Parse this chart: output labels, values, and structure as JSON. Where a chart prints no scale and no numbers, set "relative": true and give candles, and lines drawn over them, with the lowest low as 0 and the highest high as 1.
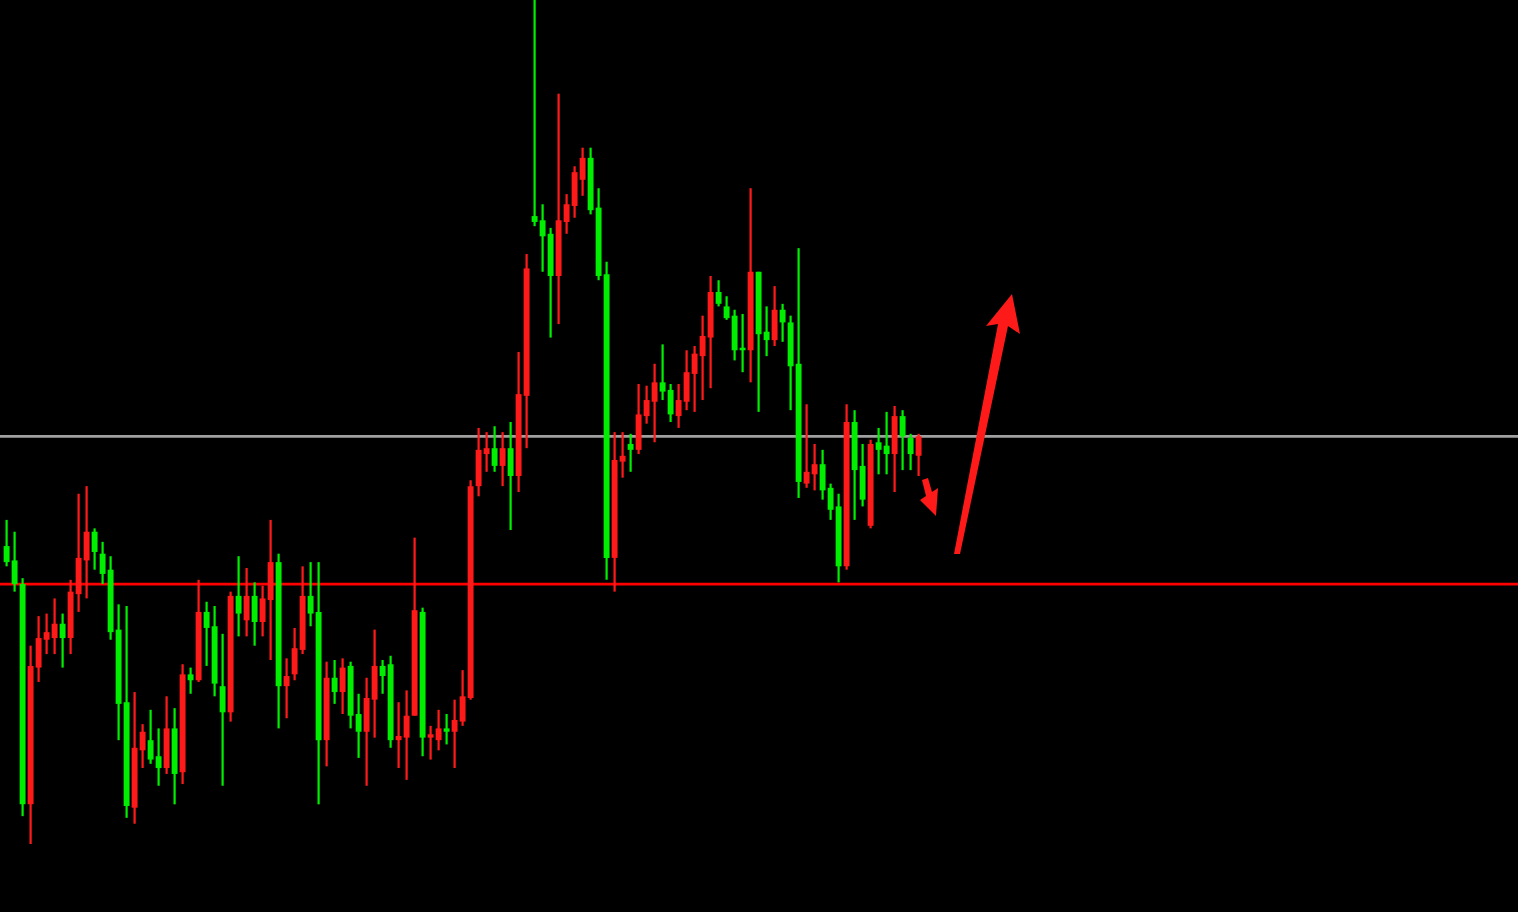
{
  "chart_data": {
    "type": "candlestick",
    "relative": true,
    "categories": [
      null,
      null,
      null,
      null,
      null,
      null,
      null,
      null,
      null,
      null,
      null,
      null,
      null,
      null,
      null,
      null,
      null,
      null,
      null,
      null,
      null,
      null,
      null,
      null,
      null,
      null,
      null,
      null,
      null,
      null,
      null,
      null,
      null,
      null,
      null,
      null,
      null,
      null,
      null,
      null,
      null,
      null,
      null,
      null,
      null,
      null,
      null,
      null,
      null,
      null,
      null,
      null,
      null,
      null,
      null,
      null,
      null,
      null,
      null,
      null,
      null,
      null,
      null,
      null,
      null,
      null,
      null,
      null,
      null,
      null,
      null,
      null,
      null,
      null,
      null,
      null,
      null,
      null,
      null,
      null,
      null,
      null,
      null,
      null,
      null,
      null,
      null,
      null,
      null,
      null,
      null,
      null,
      null,
      null,
      null,
      null,
      null,
      null,
      null,
      null,
      null,
      null,
      null,
      null,
      null,
      null,
      null,
      null,
      null,
      null,
      null,
      null,
      null,
      null,
      null
    ],
    "ohlc": [
      [
        0.353,
        0.384,
        0.329,
        0.334
      ],
      [
        0.336,
        0.37,
        0.299,
        0.308
      ],
      [
        0.308,
        0.315,
        0.033,
        0.047
      ],
      [
        0.047,
        0.235,
        0,
        0.211
      ],
      [
        0.209,
        0.27,
        0.192,
        0.244
      ],
      [
        0.242,
        0.273,
        0.225,
        0.251
      ],
      [
        0.244,
        0.291,
        0.225,
        0.261
      ],
      [
        0.261,
        0.273,
        0.209,
        0.244
      ],
      [
        0.244,
        0.313,
        0.225,
        0.299
      ],
      [
        0.296,
        0.415,
        0.275,
        0.339
      ],
      [
        0.336,
        0.424,
        0.291,
        0.37
      ],
      [
        0.37,
        0.374,
        0.325,
        0.346
      ],
      [
        0.344,
        0.358,
        0.308,
        0.32
      ],
      [
        0.325,
        0.341,
        0.242,
        0.251
      ],
      [
        0.254,
        0.284,
        0.123,
        0.166
      ],
      [
        0.168,
        0.282,
        0.031,
        0.045
      ],
      [
        0.043,
        0.18,
        0.024,
        0.114
      ],
      [
        0.111,
        0.142,
        0.09,
        0.133
      ],
      [
        0.123,
        0.159,
        0.095,
        0.1
      ],
      [
        0.104,
        0.137,
        0.069,
        0.09
      ],
      [
        0.09,
        0.175,
        0.083,
        0.137
      ],
      [
        0.137,
        0.161,
        0.047,
        0.083
      ],
      [
        0.085,
        0.213,
        0.071,
        0.201
      ],
      [
        0.201,
        0.209,
        0.178,
        0.194
      ],
      [
        0.194,
        0.313,
        0.192,
        0.275
      ],
      [
        0.275,
        0.287,
        0.211,
        0.256
      ],
      [
        0.258,
        0.282,
        0.175,
        0.19
      ],
      [
        0.187,
        0.249,
        0.069,
        0.156
      ],
      [
        0.156,
        0.299,
        0.145,
        0.294
      ],
      [
        0.294,
        0.341,
        0.246,
        0.273
      ],
      [
        0.265,
        0.327,
        0.246,
        0.294
      ],
      [
        0.294,
        0.31,
        0.235,
        0.263
      ],
      [
        0.263,
        0.306,
        0.246,
        0.291
      ],
      [
        0.289,
        0.384,
        0.218,
        0.334
      ],
      [
        0.334,
        0.344,
        0.137,
        0.187
      ],
      [
        0.187,
        0.22,
        0.149,
        0.199
      ],
      [
        0.201,
        0.256,
        0.194,
        0.232
      ],
      [
        0.23,
        0.329,
        0.225,
        0.294
      ],
      [
        0.294,
        0.334,
        0.258,
        0.273
      ],
      [
        0.275,
        0.334,
        0.047,
        0.123
      ],
      [
        0.123,
        0.216,
        0.092,
        0.197
      ],
      [
        0.197,
        0.218,
        0.166,
        0.18
      ],
      [
        0.18,
        0.22,
        0.154,
        0.209
      ],
      [
        0.211,
        0.216,
        0.137,
        0.152
      ],
      [
        0.154,
        0.178,
        0.102,
        0.133
      ],
      [
        0.133,
        0.197,
        0.069,
        0.173
      ],
      [
        0.171,
        0.254,
        0.126,
        0.211
      ],
      [
        0.211,
        0.218,
        0.178,
        0.199
      ],
      [
        0.213,
        0.223,
        0.114,
        0.123
      ],
      [
        0.123,
        0.168,
        0.09,
        0.128
      ],
      [
        0.126,
        0.182,
        0.076,
        0.152
      ],
      [
        0.152,
        0.363,
        0.152,
        0.277
      ],
      [
        0.275,
        0.28,
        0.104,
        0.126
      ],
      [
        0.126,
        0.14,
        0.1,
        0.13
      ],
      [
        0.123,
        0.159,
        0.111,
        0.137
      ],
      [
        0.137,
        0.154,
        0.118,
        0.133
      ],
      [
        0.133,
        0.171,
        0.09,
        0.147
      ],
      [
        0.145,
        0.206,
        0.14,
        0.175
      ],
      [
        0.173,
        0.431,
        0.171,
        0.424
      ],
      [
        0.424,
        0.493,
        0.412,
        0.467
      ],
      [
        0.462,
        0.488,
        0.441,
        0.469
      ],
      [
        0.469,
        0.495,
        0.441,
        0.448
      ],
      [
        0.448,
        0.488,
        0.424,
        0.469
      ],
      [
        0.469,
        0.5,
        0.372,
        0.436
      ],
      [
        0.436,
        0.583,
        0.417,
        0.533
      ],
      [
        0.531,
        0.699,
        0.469,
        0.682
      ],
      [
        0.744,
        1,
        0.732,
        0.737
      ],
      [
        0.739,
        0.758,
        0.678,
        0.72
      ],
      [
        0.723,
        0.73,
        0.6,
        0.673
      ],
      [
        0.673,
        0.889,
        0.616,
        0.739
      ],
      [
        0.737,
        0.77,
        0.723,
        0.758
      ],
      [
        0.756,
        0.803,
        0.742,
        0.796
      ],
      [
        0.787,
        0.825,
        0.768,
        0.813
      ],
      [
        0.813,
        0.825,
        0.746,
        0.751
      ],
      [
        0.754,
        0.777,
        0.668,
        0.673
      ],
      [
        0.675,
        0.69,
        0.313,
        0.339
      ],
      [
        0.339,
        0.488,
        0.299,
        0.455
      ],
      [
        0.453,
        0.488,
        0.434,
        0.46
      ],
      [
        0.474,
        0.486,
        0.441,
        0.467
      ],
      [
        0.467,
        0.545,
        0.462,
        0.509
      ],
      [
        0.507,
        0.543,
        0.498,
        0.526
      ],
      [
        0.524,
        0.569,
        0.476,
        0.547
      ],
      [
        0.547,
        0.592,
        0.526,
        0.536
      ],
      [
        0.538,
        0.545,
        0.5,
        0.509
      ],
      [
        0.507,
        0.545,
        0.493,
        0.526
      ],
      [
        0.524,
        0.585,
        0.514,
        0.559
      ],
      [
        0.557,
        0.59,
        0.512,
        0.581
      ],
      [
        0.578,
        0.626,
        0.526,
        0.602
      ],
      [
        0.6,
        0.673,
        0.54,
        0.654
      ],
      [
        0.654,
        0.668,
        0.637,
        0.64
      ],
      [
        0.637,
        0.649,
        0.621,
        0.623
      ],
      [
        0.626,
        0.633,
        0.573,
        0.585
      ],
      [
        0.588,
        0.628,
        0.559,
        0.585
      ],
      [
        0.585,
        0.777,
        0.547,
        0.678
      ],
      [
        0.678,
        0.678,
        0.512,
        0.604
      ],
      [
        0.607,
        0.637,
        0.578,
        0.597
      ],
      [
        0.597,
        0.661,
        0.59,
        0.633
      ],
      [
        0.633,
        0.64,
        0.595,
        0.618
      ],
      [
        0.618,
        0.626,
        0.514,
        0.566
      ],
      [
        0.569,
        0.706,
        0.41,
        0.429
      ],
      [
        0.427,
        0.521,
        0.422,
        0.441
      ],
      [
        0.438,
        0.474,
        0.419,
        0.45
      ],
      [
        0.45,
        0.467,
        0.408,
        0.419
      ],
      [
        0.422,
        0.427,
        0.384,
        0.396
      ],
      [
        0.4,
        0.415,
        0.31,
        0.329
      ],
      [
        0.329,
        0.521,
        0.325,
        0.5
      ],
      [
        0.5,
        0.514,
        0.384,
        0.443
      ],
      [
        0.448,
        0.474,
        0.4,
        0.408
      ],
      [
        0.377,
        0.479,
        0.374,
        0.474
      ],
      [
        0.476,
        0.493,
        0.438,
        0.467
      ],
      [
        0.472,
        0.512,
        0.438,
        0.462
      ],
      [
        0.462,
        0.519,
        0.417,
        0.507
      ],
      [
        0.507,
        0.514,
        0.443,
        0.483
      ],
      [
        0.481,
        0.486,
        0.443,
        0.462
      ],
      [
        0.46,
        0.486,
        0.436,
        0.483
      ]
    ],
    "colors": [
      "#00ee00",
      "#00ee00",
      "#00ee00",
      "#ff1a1a",
      "#ff1a1a",
      "#ff1a1a",
      "#ff1a1a",
      "#00ee00",
      "#ff1a1a",
      "#ff1a1a",
      "#ff1a1a",
      "#00ee00",
      "#00ee00",
      "#00ee00",
      "#00ee00",
      "#00ee00",
      "#ff1a1a",
      "#ff1a1a",
      "#00ee00",
      "#00ee00",
      "#ff1a1a",
      "#00ee00",
      "#ff1a1a",
      "#00ee00",
      "#ff1a1a",
      "#00ee00",
      "#00ee00",
      "#00ee00",
      "#ff1a1a",
      "#00ee00",
      "#ff1a1a",
      "#00ee00",
      "#ff1a1a",
      "#ff1a1a",
      "#00ee00",
      "#ff1a1a",
      "#ff1a1a",
      "#ff1a1a",
      "#00ee00",
      "#00ee00",
      "#ff1a1a",
      "#00ee00",
      "#ff1a1a",
      "#00ee00",
      "#00ee00",
      "#ff1a1a",
      "#ff1a1a",
      "#00ee00",
      "#00ee00",
      "#ff1a1a",
      "#ff1a1a",
      "#ff1a1a",
      "#00ee00",
      "#ff1a1a",
      "#ff1a1a",
      "#00ee00",
      "#ff1a1a",
      "#ff1a1a",
      "#ff1a1a",
      "#ff1a1a",
      "#ff1a1a",
      "#00ee00",
      "#ff1a1a",
      "#00ee00",
      "#ff1a1a",
      "#ff1a1a",
      "#00ee00",
      "#00ee00",
      "#00ee00",
      "#ff1a1a",
      "#ff1a1a",
      "#ff1a1a",
      "#ff1a1a",
      "#00ee00",
      "#00ee00",
      "#00ee00",
      "#ff1a1a",
      "#ff1a1a",
      "#00ee00",
      "#ff1a1a",
      "#ff1a1a",
      "#ff1a1a",
      "#00ee00",
      "#00ee00",
      "#ff1a1a",
      "#ff1a1a",
      "#ff1a1a",
      "#ff1a1a",
      "#ff1a1a",
      "#00ee00",
      "#00ee00",
      "#00ee00",
      "#00ee00",
      "#ff1a1a",
      "#00ee00",
      "#00ee00",
      "#ff1a1a",
      "#00ee00",
      "#00ee00",
      "#00ee00",
      "#ff1a1a",
      "#ff1a1a",
      "#00ee00",
      "#00ee00",
      "#00ee00",
      "#ff1a1a",
      "#00ee00",
      "#00ee00",
      "#ff1a1a",
      "#00ee00",
      "#00ee00",
      "#ff1a1a",
      "#00ee00",
      "#00ee00",
      "#ff1a1a"
    ],
    "ref_lines": [
      {
        "axis": "y",
        "value": 0.483,
        "color": "#a0a0a0",
        "line_style": "solid"
      },
      {
        "axis": "y",
        "value": 0.308,
        "color": "#ff0000",
        "line_style": "solid"
      }
    ],
    "legend": false
  }
}
